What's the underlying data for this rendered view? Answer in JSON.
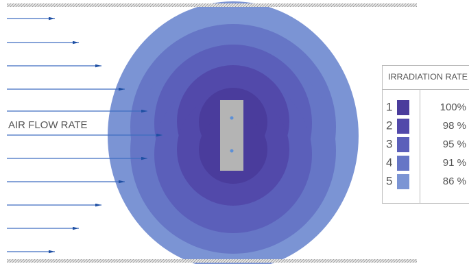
{
  "diagram": {
    "label": "AIR FLOW RATE"
  },
  "legend": {
    "title": "IRRADIATION RATE",
    "rows": [
      {
        "index": 1,
        "value": "100%",
        "color": "#4a3c9c"
      },
      {
        "index": 2,
        "value": "98 %",
        "color": "#5249aa"
      },
      {
        "index": 3,
        "value": "95 %",
        "color": "#5b5fba"
      },
      {
        "index": 4,
        "value": "91 %",
        "color": "#6676c6"
      },
      {
        "index": 5,
        "value": "86 %",
        "color": "#7b94d4"
      }
    ]
  }
}
